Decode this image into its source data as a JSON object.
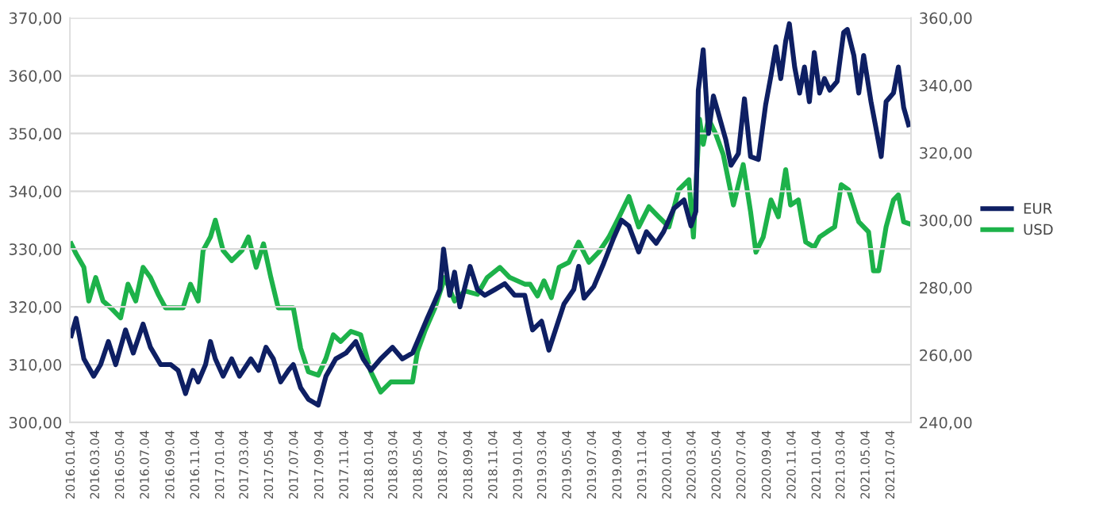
{
  "chart_data": {
    "type": "line",
    "xlim": [
      "2016-01-01",
      "2021-08-22"
    ],
    "xticks": [
      {
        "value": "2016-01-04",
        "label": "2016.01.04"
      },
      {
        "value": "2016-03-04",
        "label": "2016.03.04"
      },
      {
        "value": "2016-05-04",
        "label": "2016.05.04"
      },
      {
        "value": "2016-07-04",
        "label": "2016.07.04"
      },
      {
        "value": "2016-09-04",
        "label": "2016.09.04"
      },
      {
        "value": "2016-11-04",
        "label": "2016.11.04"
      },
      {
        "value": "2017-01-04",
        "label": "2017.01.04"
      },
      {
        "value": "2017-03-04",
        "label": "2017.03.04"
      },
      {
        "value": "2017-05-04",
        "label": "2017.05.04"
      },
      {
        "value": "2017-07-04",
        "label": "2017.07.04"
      },
      {
        "value": "2017-09-04",
        "label": "2017.09.04"
      },
      {
        "value": "2017-11-04",
        "label": "2017.11.04"
      },
      {
        "value": "2018-01-04",
        "label": "2018.01.04"
      },
      {
        "value": "2018-03-04",
        "label": "2018.03.04"
      },
      {
        "value": "2018-05-04",
        "label": "2018.05.04"
      },
      {
        "value": "2018-07-04",
        "label": "2018.07.04"
      },
      {
        "value": "2018-09-04",
        "label": "2018.09.04"
      },
      {
        "value": "2018-11-04",
        "label": "2018.11.04"
      },
      {
        "value": "2019-01-04",
        "label": "2019.01.04"
      },
      {
        "value": "2019-03-04",
        "label": "2019.03.04"
      },
      {
        "value": "2019-05-04",
        "label": "2019.05.04"
      },
      {
        "value": "2019-07-04",
        "label": "2019.07.04"
      },
      {
        "value": "2019-09-04",
        "label": "2019.09.04"
      },
      {
        "value": "2019-11-04",
        "label": "2019.11.04"
      },
      {
        "value": "2020-01-04",
        "label": "2020.01.04"
      },
      {
        "value": "2020-03-04",
        "label": "2020.03.04"
      },
      {
        "value": "2020-05-04",
        "label": "2020.05.04"
      },
      {
        "value": "2020-07-04",
        "label": "2020.07.04"
      },
      {
        "value": "2020-09-04",
        "label": "2020.09.04"
      },
      {
        "value": "2020-11-04",
        "label": "2020.11.04"
      },
      {
        "value": "2021-01-04",
        "label": "2021.01.04"
      },
      {
        "value": "2021-03-04",
        "label": "2021.03.04"
      },
      {
        "value": "2021-05-04",
        "label": "2021.05.04"
      },
      {
        "value": "2021-07-04",
        "label": "2021.07.04"
      }
    ],
    "ylim": [
      300,
      370
    ],
    "yticks": [
      {
        "value": 300,
        "label": "300,00"
      },
      {
        "value": 310,
        "label": "310,00"
      },
      {
        "value": 320,
        "label": "320,00"
      },
      {
        "value": 330,
        "label": "330,00"
      },
      {
        "value": 340,
        "label": "340,00"
      },
      {
        "value": 350,
        "label": "350,00"
      },
      {
        "value": 360,
        "label": "360,00"
      },
      {
        "value": 370,
        "label": "370,00"
      }
    ],
    "y2lim": [
      240,
      360
    ],
    "y2ticks": [
      {
        "value": 240,
        "label": "240,00"
      },
      {
        "value": 260,
        "label": "260,00"
      },
      {
        "value": 280,
        "label": "280,00"
      },
      {
        "value": 300,
        "label": "300,00"
      },
      {
        "value": 320,
        "label": "320,00"
      },
      {
        "value": 340,
        "label": "340,00"
      },
      {
        "value": 360,
        "label": "360,00"
      }
    ],
    "grid": "y",
    "legend": "right",
    "line_style": "solid",
    "series": [
      {
        "name": "EUR",
        "color": "#0e1f63",
        "x": [
          "2016-01-04",
          "2016-01-16",
          "2016-02-04",
          "2016-02-28",
          "2016-03-16",
          "2016-04-04",
          "2016-04-22",
          "2016-05-16",
          "2016-06-04",
          "2016-06-28",
          "2016-07-16",
          "2016-08-10",
          "2016-09-04",
          "2016-09-22",
          "2016-10-10",
          "2016-10-28",
          "2016-11-10",
          "2016-11-28",
          "2016-12-10",
          "2016-12-22",
          "2017-01-10",
          "2017-01-31",
          "2017-02-19",
          "2017-03-19",
          "2017-04-07",
          "2017-04-25",
          "2017-05-13",
          "2017-05-31",
          "2017-06-19",
          "2017-07-01",
          "2017-07-19",
          "2017-08-07",
          "2017-08-31",
          "2017-09-19",
          "2017-10-13",
          "2017-11-07",
          "2017-12-01",
          "2017-12-19",
          "2018-01-07",
          "2018-01-31",
          "2018-03-01",
          "2018-03-25",
          "2018-04-19",
          "2018-05-07",
          "2018-05-25",
          "2018-06-13",
          "2018-06-25",
          "2018-07-04",
          "2018-07-19",
          "2018-07-31",
          "2018-08-13",
          "2018-09-07",
          "2018-09-25",
          "2018-10-13",
          "2018-11-07",
          "2018-12-01",
          "2018-12-25",
          "2019-01-19",
          "2019-02-07",
          "2019-03-01",
          "2019-03-19",
          "2019-04-25",
          "2019-05-19",
          "2019-05-31",
          "2019-06-13",
          "2019-07-07",
          "2019-07-31",
          "2019-08-25",
          "2019-09-13",
          "2019-10-01",
          "2019-10-25",
          "2019-11-13",
          "2019-12-07",
          "2019-12-25",
          "2020-01-19",
          "2020-02-13",
          "2020-03-01",
          "2020-03-13",
          "2020-03-19",
          "2020-03-31",
          "2020-04-13",
          "2020-04-25",
          "2020-05-07",
          "2020-05-25",
          "2020-06-07",
          "2020-06-25",
          "2020-07-10",
          "2020-07-25",
          "2020-08-13",
          "2020-08-31",
          "2020-09-13",
          "2020-09-25",
          "2020-10-07",
          "2020-10-19",
          "2020-10-28",
          "2020-11-10",
          "2020-11-22",
          "2020-12-04",
          "2020-12-16",
          "2020-12-28",
          "2021-01-10",
          "2021-01-22",
          "2021-02-04",
          "2021-02-22",
          "2021-03-10",
          "2021-03-19",
          "2021-04-04",
          "2021-04-16",
          "2021-04-28",
          "2021-05-16",
          "2021-05-28",
          "2021-06-10",
          "2021-06-22",
          "2021-07-10",
          "2021-07-22",
          "2021-08-04",
          "2021-08-16"
        ],
        "values": [
          315,
          318,
          311,
          308,
          310,
          314,
          310,
          316,
          312,
          317,
          313,
          310,
          310,
          309,
          305,
          309,
          307,
          310,
          314,
          311,
          308,
          311,
          308,
          311,
          309,
          313,
          311,
          307,
          309,
          310,
          306,
          304,
          303,
          308,
          311,
          312,
          314,
          311,
          309,
          311,
          313,
          311,
          312,
          315,
          318,
          321,
          323,
          330,
          322,
          326,
          320,
          327,
          323,
          322,
          323,
          324,
          322,
          322,
          316,
          317.5,
          312.5,
          320.5,
          323,
          327,
          321.5,
          323.5,
          327.5,
          332,
          335,
          334,
          329.5,
          333,
          331,
          333,
          337,
          338.5,
          334,
          336.5,
          357.5,
          364.5,
          350,
          356.5,
          353.5,
          349,
          344.5,
          346.5,
          356,
          346,
          345.5,
          355,
          360,
          365,
          359.5,
          366,
          369,
          361.5,
          357,
          361.5,
          355.5,
          364,
          357,
          359.5,
          357.5,
          359,
          367.5,
          368,
          363.5,
          357,
          363.5,
          355.5,
          351,
          346,
          355.5,
          357,
          361.5,
          354.5,
          351.5
        ]
      },
      {
        "name": "USD",
        "color": "#1db24a",
        "axis": "y2",
        "x": [
          "2016-01-04",
          "2016-01-16",
          "2016-02-04",
          "2016-02-16",
          "2016-03-04",
          "2016-03-22",
          "2016-04-10",
          "2016-05-04",
          "2016-05-22",
          "2016-06-10",
          "2016-06-28",
          "2016-07-16",
          "2016-08-04",
          "2016-08-22",
          "2016-09-16",
          "2016-10-04",
          "2016-10-22",
          "2016-11-10",
          "2016-11-22",
          "2016-12-10",
          "2016-12-22",
          "2017-01-10",
          "2017-01-31",
          "2017-02-25",
          "2017-03-13",
          "2017-04-01",
          "2017-04-19",
          "2017-05-07",
          "2017-05-25",
          "2017-06-13",
          "2017-07-01",
          "2017-07-19",
          "2017-08-07",
          "2017-08-31",
          "2017-09-19",
          "2017-10-07",
          "2017-10-25",
          "2017-11-19",
          "2017-12-13",
          "2018-01-07",
          "2018-01-31",
          "2018-02-25",
          "2018-03-19",
          "2018-04-19",
          "2018-05-01",
          "2018-05-19",
          "2018-06-13",
          "2018-07-07",
          "2018-07-31",
          "2018-08-25",
          "2018-09-25",
          "2018-10-19",
          "2018-11-19",
          "2018-12-13",
          "2019-01-19",
          "2019-02-01",
          "2019-02-19",
          "2019-03-07",
          "2019-03-25",
          "2019-04-13",
          "2019-05-07",
          "2019-05-31",
          "2019-06-25",
          "2019-07-19",
          "2019-08-13",
          "2019-09-07",
          "2019-10-01",
          "2019-10-25",
          "2019-11-19",
          "2019-12-13",
          "2020-01-07",
          "2020-01-31",
          "2020-02-25",
          "2020-03-07",
          "2020-03-22",
          "2020-03-31",
          "2020-04-13",
          "2020-05-01",
          "2020-05-19",
          "2020-06-13",
          "2020-07-07",
          "2020-07-25",
          "2020-08-07",
          "2020-08-25",
          "2020-09-13",
          "2020-10-01",
          "2020-10-19",
          "2020-10-31",
          "2020-11-19",
          "2020-12-07",
          "2020-12-28",
          "2021-01-10",
          "2021-01-28",
          "2021-02-16",
          "2021-03-04",
          "2021-03-22",
          "2021-04-16",
          "2021-05-10",
          "2021-05-22",
          "2021-06-04",
          "2021-06-22",
          "2021-07-10",
          "2021-07-22",
          "2021-08-04",
          "2021-08-16"
        ],
        "values": [
          293,
          290,
          286,
          276,
          283,
          276,
          274,
          271,
          281,
          276,
          286,
          283,
          278,
          274,
          274,
          274,
          281,
          276,
          291,
          295,
          300,
          291,
          288,
          291,
          295,
          286,
          293,
          283,
          274,
          274,
          274,
          262,
          255,
          254,
          259,
          266,
          264,
          267,
          266,
          255,
          249,
          252,
          252,
          252,
          261,
          267,
          274,
          283,
          276,
          279,
          278,
          283,
          286,
          283,
          281,
          281,
          277.5,
          282,
          277,
          286,
          287.5,
          293.5,
          287.5,
          290.5,
          295,
          301,
          307,
          298,
          304,
          301,
          298,
          309,
          312,
          295,
          330,
          322.5,
          330,
          325.5,
          319.5,
          304.5,
          316.5,
          302.5,
          290.5,
          295,
          306,
          301,
          315,
          304.5,
          306,
          293.5,
          292,
          295,
          296.5,
          298,
          310.5,
          309,
          299.5,
          296.5,
          285,
          285,
          298,
          306,
          307.5,
          299.5,
          299
        ]
      }
    ]
  }
}
